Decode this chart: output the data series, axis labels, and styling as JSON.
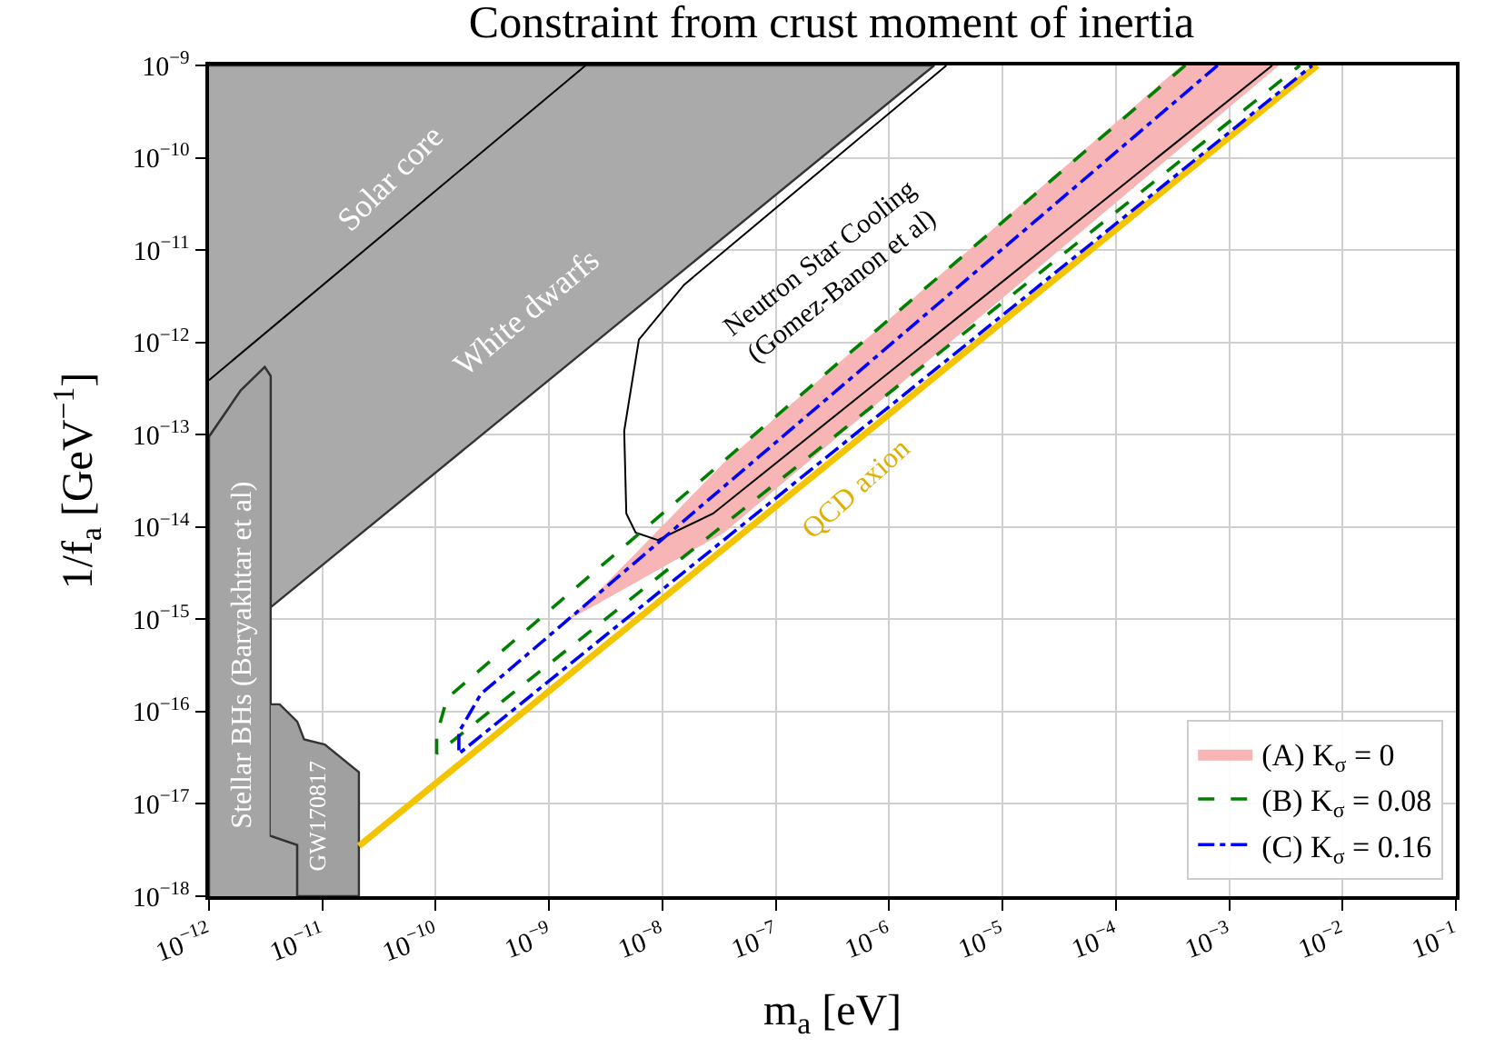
{
  "chart_data": {
    "type": "line",
    "title": "Constraint from crust moment of inertia",
    "xlabel": "m$_{a}$ [eV]",
    "ylabel": "1/f$_{a}$ [GeV$^{−1}$]",
    "log": "xy",
    "grid": true,
    "legend": "bottom right",
    "xlim": [
      1e-12,
      0.1
    ],
    "ylim": [
      1e-18,
      1e-09
    ],
    "xticks": [
      {
        "value": 1e-12,
        "label": "10$^{−12}$"
      },
      {
        "value": 1e-11,
        "label": "10$^{−11}$"
      },
      {
        "value": 1e-10,
        "label": "10$^{−10}$"
      },
      {
        "value": 1e-09,
        "label": "10$^{−9}$"
      },
      {
        "value": 1e-08,
        "label": "10$^{−8}$"
      },
      {
        "value": 1e-07,
        "label": "10$^{−7}$"
      },
      {
        "value": 1e-06,
        "label": "10$^{−6}$"
      },
      {
        "value": 1e-05,
        "label": "10$^{−5}$"
      },
      {
        "value": 0.0001,
        "label": "10$^{−4}$"
      },
      {
        "value": 0.001,
        "label": "10$^{−3}$"
      },
      {
        "value": 0.01,
        "label": "10$^{−2}$"
      },
      {
        "value": 0.1,
        "label": "10$^{−1}$"
      }
    ],
    "yticks": [
      {
        "value": 1e-18,
        "label": "10$^{−18}$"
      },
      {
        "value": 1e-17,
        "label": "10$^{−17}$"
      },
      {
        "value": 1e-16,
        "label": "10$^{−16}$"
      },
      {
        "value": 1e-15,
        "label": "10$^{−15}$"
      },
      {
        "value": 1e-14,
        "label": "10$^{−14}$"
      },
      {
        "value": 1e-13,
        "label": "10$^{−13}$"
      },
      {
        "value": 1e-12,
        "label": "10$^{−12}$"
      },
      {
        "value": 1e-11,
        "label": "10$^{−11}$"
      },
      {
        "value": 1e-10,
        "label": "10$^{−10}$"
      },
      {
        "value": 1e-09,
        "label": "10$^{−9}$"
      }
    ],
    "series": [
      {
        "type": "area",
        "color": "#aaaaaa",
        "x": [
          1e-12,
          2.5e-06,
          3.5e-12,
          3.5e-12,
          3.1e-12,
          1.9e-12,
          1e-12
        ],
        "values": [
          1e-09,
          1e-09,
          1.35e-15,
          4.3e-13,
          5.4e-13,
          3e-13,
          9.5e-14
        ]
      },
      {
        "type": "line",
        "color": "#000000",
        "x": [
          1e-12,
          2.1e-09
        ],
        "values": [
          3.9e-13,
          1e-09
        ]
      },
      {
        "type": "area",
        "color": "#a5a5a5",
        "x": [
          1e-12,
          1e-12,
          1.9e-12,
          3.1e-12,
          3.5e-12,
          3.5e-12,
          6e-12,
          6e-12
        ],
        "values": [
          1e-18,
          9.5e-14,
          3e-13,
          5.4e-13,
          4.3e-13,
          4.5e-18,
          3.6e-18,
          1e-18
        ]
      },
      {
        "type": "area",
        "color": "#a0a0a0",
        "x": [
          3.5e-12,
          4.2e-12,
          6e-12,
          6.9e-12,
          1.05e-11,
          2.1e-11,
          2.1e-11,
          6e-12,
          6e-12,
          3.5e-12
        ],
        "values": [
          1.2e-16,
          1.2e-16,
          7.8e-17,
          5e-17,
          4.4e-17,
          2.2e-17,
          1e-18,
          1e-18,
          3.6e-18,
          4.5e-18
        ]
      },
      {
        "type": "area",
        "name": "(A) K$_{σ}$ = 0",
        "color": "#f7b5b5",
        "x": [
          1.4e-09,
          2.5e-09,
          3.5e-08,
          0.00038,
          0.00275,
          0.00038,
          3.5e-08,
          2.5e-09
        ],
        "values": [
          9.5e-16,
          1.8e-15,
          5e-14,
          1e-09,
          1e-09,
          1.3e-10,
          8.7e-15,
          1.4e-15
        ]
      },
      {
        "type": "line",
        "color": "#000000",
        "x": [
          3.2e-06,
          1.55e-08,
          6.2e-09,
          4.6e-09,
          4.8e-09,
          5.8e-09,
          9.1e-09,
          2.8e-08,
          0.0024
        ],
        "values": [
          1e-09,
          4.2e-12,
          1.07e-12,
          1.1e-13,
          1.4e-14,
          8.7e-15,
          7.2e-15,
          1.4e-14,
          1e-09
        ]
      },
      {
        "type": "line",
        "color": "#f5c400",
        "x": [
          2.1e-11,
          0.006
        ],
        "values": [
          3.5e-18,
          1e-09
        ]
      },
      {
        "type": "line",
        "name": "(B) K$_{σ}$ = 0.08",
        "color": "#008000",
        "line_style": "dashed",
        "x": [
          0.00041,
          1.26e-10,
          1.02e-10,
          1.02e-10,
          0.0042
        ],
        "values": [
          1e-09,
          1.4e-16,
          5.6e-17,
          3.5e-17,
          1e-09
        ]
      },
      {
        "type": "line",
        "name": "(C) K$_{σ}$ = 0.16",
        "color": "#0000ff",
        "line_style": "dashdot",
        "x": [
          0.00079,
          2.5e-10,
          1.6e-10,
          1.6e-10,
          0.0054
        ],
        "values": [
          1e-09,
          1.55e-16,
          6e-17,
          3.5e-17,
          1e-09
        ]
      }
    ],
    "annotations": [
      "Solar core",
      "White dwarfs",
      "Neutron Star Cooling\n(Gomez-Banon et al)",
      "QCD axion",
      "Stellar BHs (Baryakhtar et al)",
      "GW170817"
    ]
  }
}
